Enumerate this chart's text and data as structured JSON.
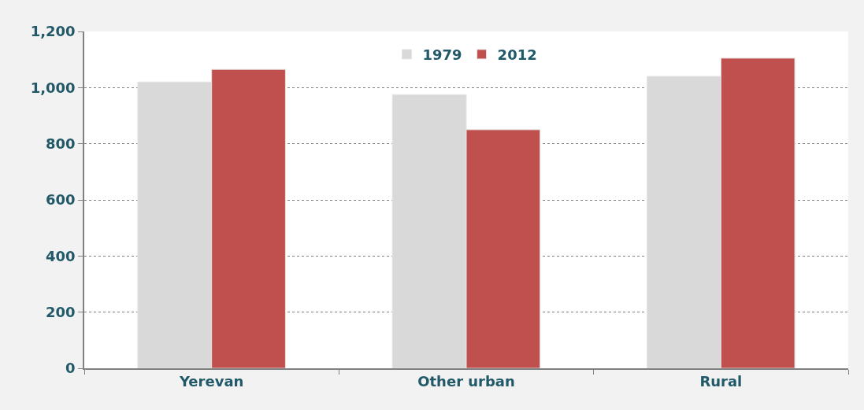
{
  "chart_data": {
    "type": "bar",
    "categories": [
      "Yerevan",
      "Other urban",
      "Rural"
    ],
    "series": [
      {
        "name": "1979",
        "color": "#d9d9d9",
        "values": [
          1020,
          975,
          1040
        ]
      },
      {
        "name": "2012",
        "color": "#c0504d",
        "values": [
          1065,
          850,
          1105
        ]
      }
    ],
    "ylim": [
      0,
      1200
    ],
    "yticks": [
      0,
      200,
      400,
      600,
      800,
      {
        "value": 1000,
        "label": "1,000"
      },
      {
        "value": 1200,
        "label": "1,200"
      }
    ],
    "grid": "y",
    "legend": "top"
  }
}
